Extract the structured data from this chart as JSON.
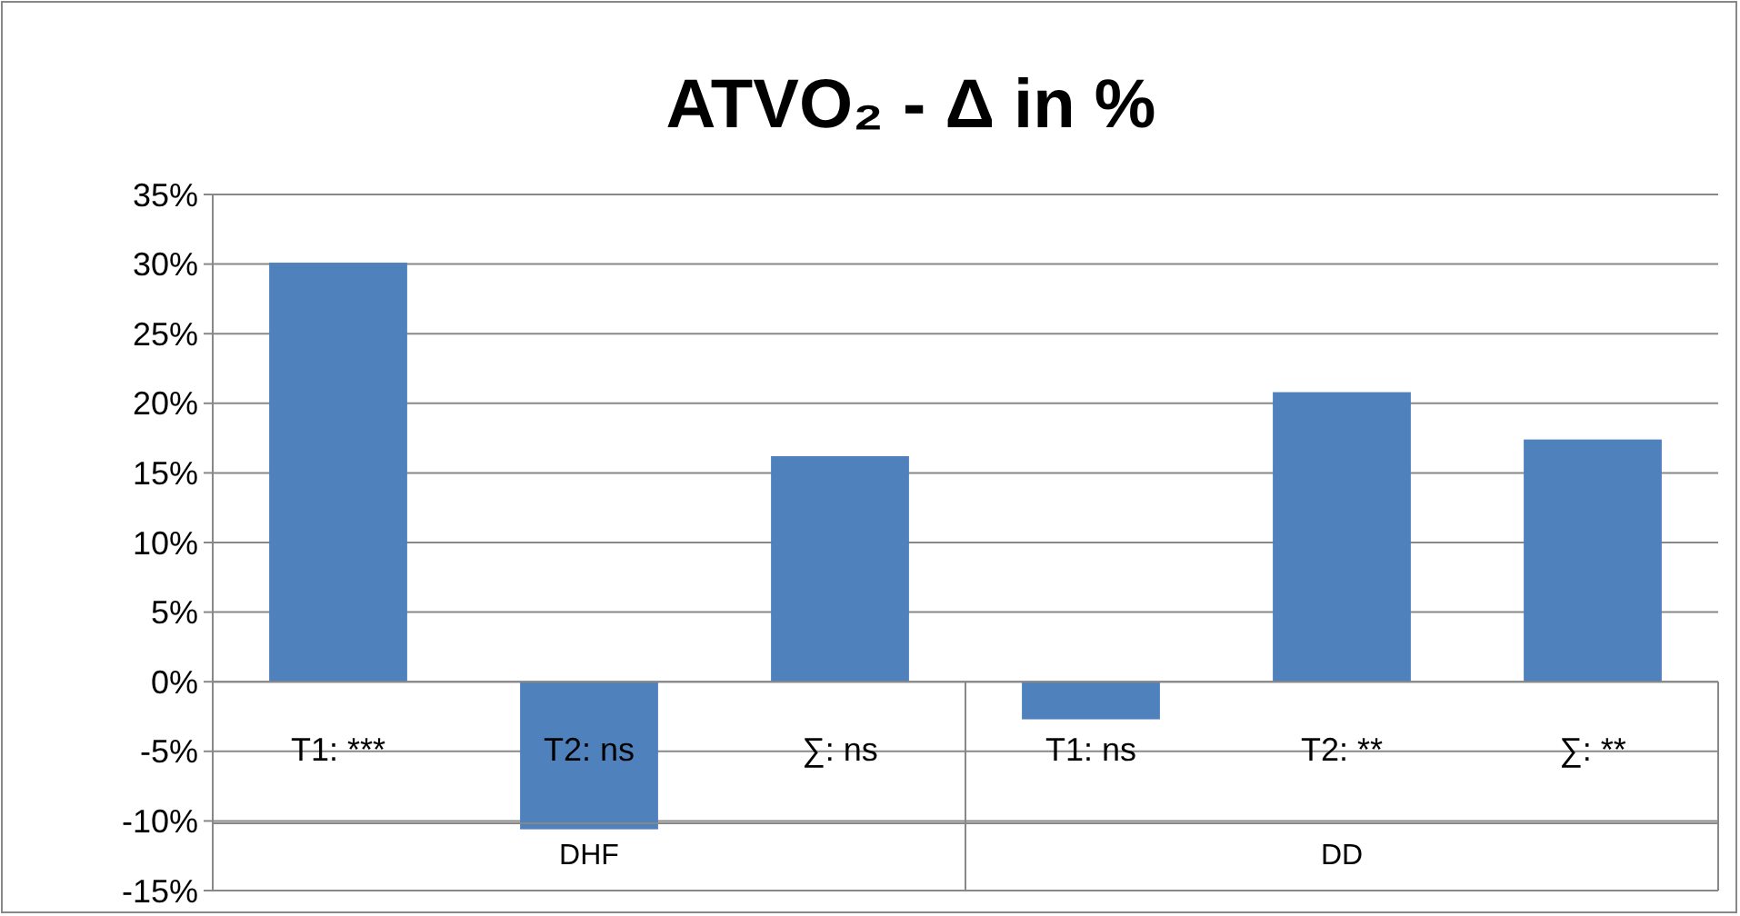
{
  "chart_data": {
    "type": "bar",
    "title": "ATVO₂ - Δ in %",
    "categories": [
      "T1: ***",
      "T2: ns",
      "∑: ns",
      "T1: ns",
      "T2: **",
      "∑: **"
    ],
    "values": [
      30.1,
      -10.6,
      16.2,
      -2.7,
      20.8,
      17.4
    ],
    "color": "#4f81bd",
    "annotations": [
      "DHF",
      "DD"
    ],
    "ylim": [
      -15,
      35
    ],
    "yticks": [
      {
        "value": -15,
        "label": "-15%"
      },
      {
        "value": -10,
        "label": "-10%"
      },
      {
        "value": -5,
        "label": "-5%"
      },
      {
        "value": 0,
        "label": "0%"
      },
      {
        "value": 5,
        "label": "5%"
      },
      {
        "value": 10,
        "label": "10%"
      },
      {
        "value": 15,
        "label": "15%"
      },
      {
        "value": 20,
        "label": "20%"
      },
      {
        "value": 25,
        "label": "25%"
      },
      {
        "value": 30,
        "label": "30%"
      },
      {
        "value": 35,
        "label": "35%"
      }
    ],
    "grid": "y"
  }
}
